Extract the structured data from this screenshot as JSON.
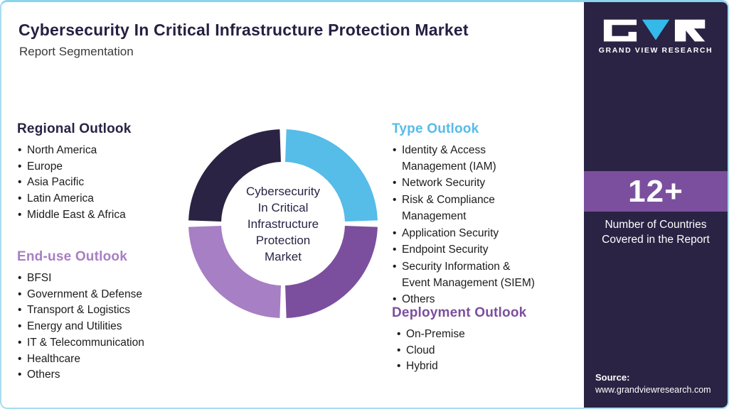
{
  "palette": {
    "navy": "#2A2344",
    "blue": "#56BCE8",
    "purple": "#7B4F9E",
    "lavender": "#A77FC4",
    "border_blue": "#A9DDF0",
    "white": "#FFFFFF"
  },
  "header": {
    "title": "Cybersecurity In Critical Infrastructure Protection Market",
    "subtitle": "Report Segmentation"
  },
  "sections": {
    "regional": {
      "title": "Regional Outlook",
      "items": [
        "North America",
        "Europe",
        "Asia Pacific",
        "Latin America",
        "Middle East & Africa"
      ]
    },
    "end_use": {
      "title": "End-use Outlook",
      "items": [
        "BFSI",
        "Government & Defense",
        "Transport & Logistics",
        "Energy and Utilities",
        "IT & Telecommunication",
        "Healthcare",
        "Others"
      ]
    },
    "type": {
      "title": "Type Outlook",
      "items": [
        "Identity & Access Management (IAM)",
        "Network Security",
        "Risk & Compliance Management",
        "Application Security",
        "Endpoint Security",
        "Security Information & Event Management (SIEM)",
        "Others"
      ]
    },
    "deployment": {
      "title": "Deployment Outlook",
      "items": [
        "On-Premise",
        "Cloud",
        "Hybrid"
      ]
    }
  },
  "donut": {
    "center_lines": [
      "Cybersecurity",
      "In Critical",
      "Infrastructure",
      "Protection",
      "Market"
    ],
    "segments": [
      {
        "name": "Type Outlook",
        "color": "#56BCE8"
      },
      {
        "name": "Deployment Outlook",
        "color": "#7B4F9E"
      },
      {
        "name": "End-use Outlook",
        "color": "#A77FC4"
      },
      {
        "name": "Regional Outlook",
        "color": "#2A2344"
      }
    ]
  },
  "chart_data": {
    "type": "pie",
    "title": "Cybersecurity In Critical Infrastructure Protection Market Report Segmentation",
    "categories": [
      "Type Outlook",
      "Deployment Outlook",
      "End-use Outlook",
      "Regional Outlook"
    ],
    "values": [
      25,
      25,
      25,
      25
    ],
    "center_label": "Cybersecurity In Critical Infrastructure Protection Market",
    "legend_position": "none",
    "notes": "Equal decorative quadrants; colors match section headings"
  },
  "sidebar": {
    "brand": "GRAND VIEW RESEARCH",
    "countries_count": "12+",
    "countries_label_lines": [
      "Number of Countries",
      "Covered in the Report"
    ],
    "source_label": "Source:",
    "source_url": "www.grandviewresearch.com"
  }
}
